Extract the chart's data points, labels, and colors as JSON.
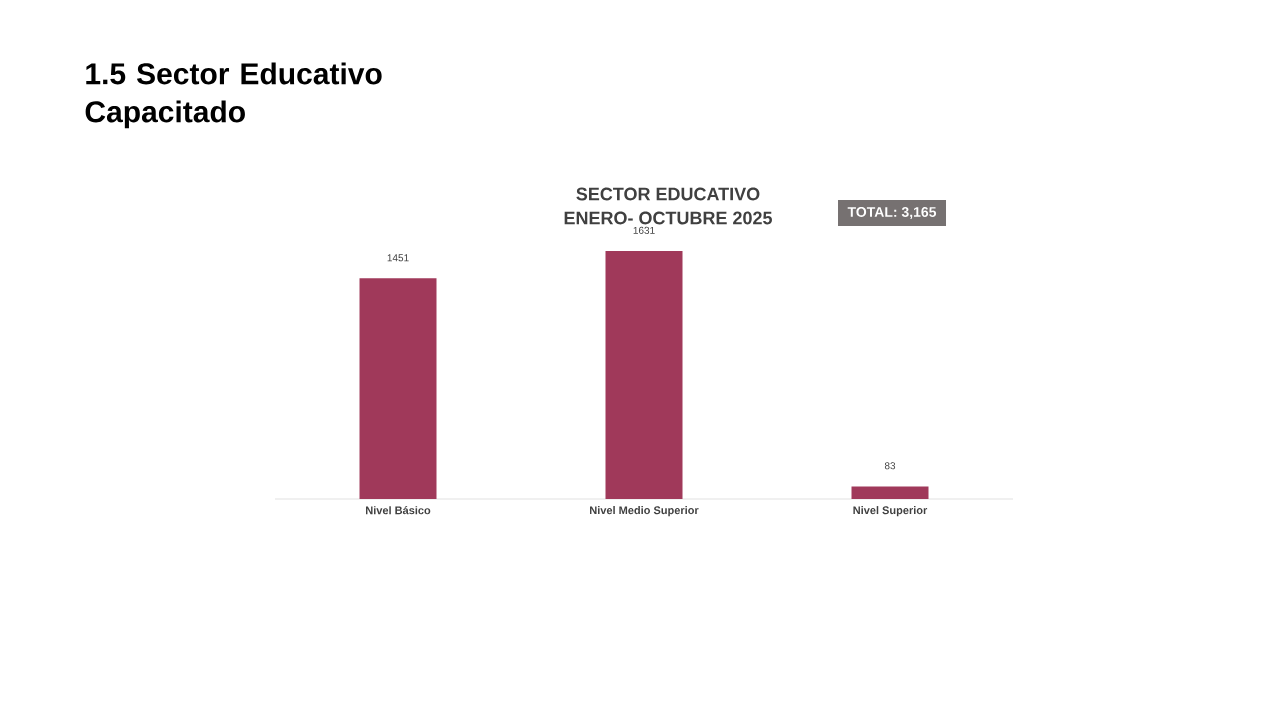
{
  "chart_data": {
    "type": "bar",
    "title": "SECTOR EDUCATIVO",
    "subtitle": "ENERO- OCTUBRE 2025",
    "categories": [
      "Nivel Básico",
      "Nivel Medio Superior",
      "Nivel Superior"
    ],
    "values": [
      1451,
      1631,
      83
    ],
    "color": "#a0395a",
    "data_labels": true,
    "annotations": [
      "1.5  Sector Educativo Capacitado",
      "TOTAL: 3,165"
    ]
  }
}
